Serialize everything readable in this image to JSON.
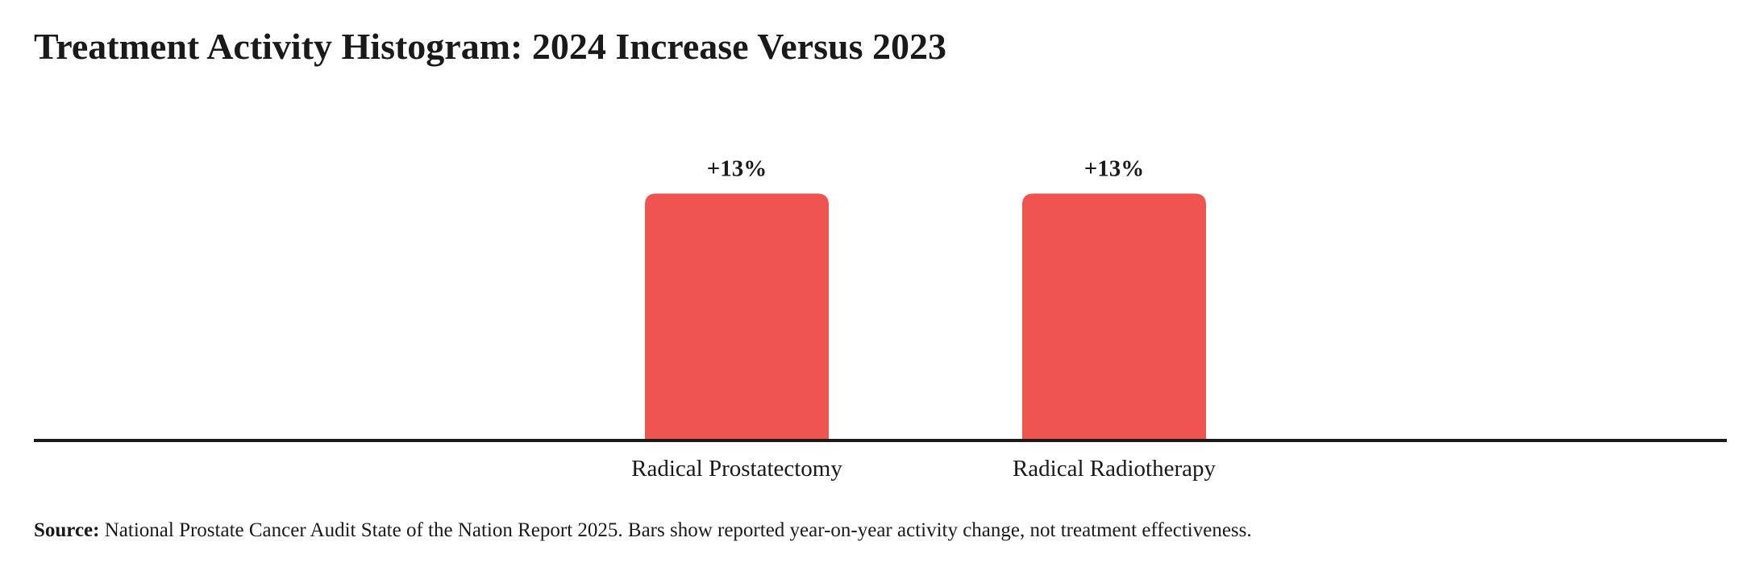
{
  "chart_data": {
    "type": "bar",
    "title": "Treatment Activity Histogram: 2024 Increase Versus 2023",
    "categories": [
      "Radical Prostatectomy",
      "Radical Radiotherapy"
    ],
    "values": [
      13,
      13
    ],
    "data_labels": [
      "+13%",
      "+13%"
    ],
    "unit": "%",
    "xlabel": "",
    "ylabel": "",
    "ylim": [
      0,
      14.5
    ],
    "grid": false,
    "legend": "none",
    "bar_color": "#f05450",
    "axis_color": "#1a1a1a"
  },
  "source": {
    "label": "Source:",
    "text": " National Prostate Cancer Audit State of the Nation Report 2025. Bars show reported year-on-year activity change, not treatment effectiveness."
  }
}
